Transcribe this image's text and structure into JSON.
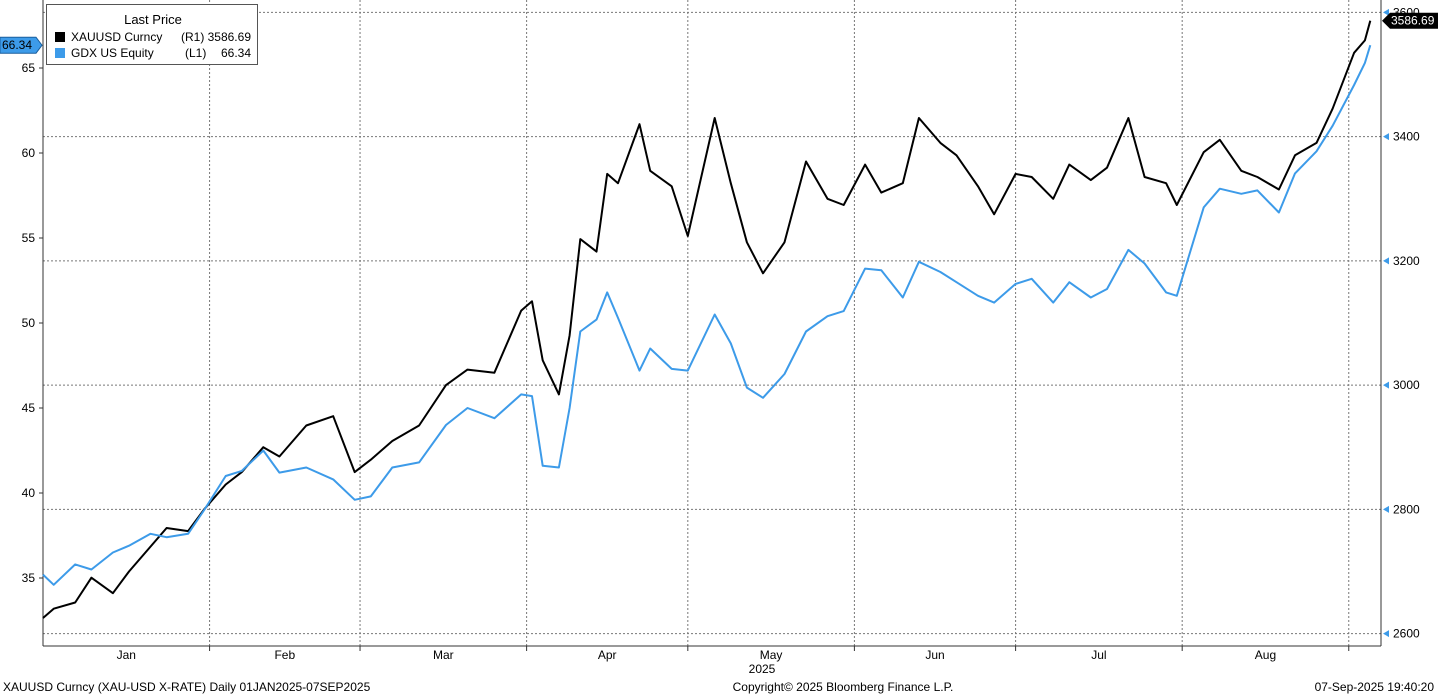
{
  "chart_data": {
    "type": "line",
    "legend": {
      "title": "Last Price",
      "placement": "top-left",
      "items": [
        {
          "name": "XAUUSD Curncy",
          "axis": "(R1)",
          "value": "3586.69",
          "color": "#000000"
        },
        {
          "name": "GDX US Equity",
          "axis": "(L1)",
          "value": "66.34",
          "color": "#3d9be9"
        }
      ]
    },
    "left_axis": {
      "ticks": [
        35,
        40,
        45,
        50,
        55,
        60,
        65
      ],
      "range": [
        31,
        69
      ],
      "last_label": "66.34"
    },
    "right_axis": {
      "ticks": [
        2600,
        2800,
        3000,
        3200,
        3400,
        3600
      ],
      "range": [
        2580,
        3620
      ],
      "last_label": "3586.69"
    },
    "x_axis": {
      "months": [
        "Jan",
        "Feb",
        "Mar",
        "Apr",
        "May",
        "Jun",
        "Jul",
        "Aug"
      ],
      "year_label": "2025",
      "start": "2025-01-01",
      "end": "2025-09-07"
    },
    "grid": true,
    "series": [
      {
        "name": "XAUUSD Curncy",
        "axis": "right",
        "color": "#000000",
        "points": [
          [
            "2025-01-01",
            2625
          ],
          [
            "2025-01-03",
            2640
          ],
          [
            "2025-01-07",
            2650
          ],
          [
            "2025-01-10",
            2690
          ],
          [
            "2025-01-14",
            2665
          ],
          [
            "2025-01-17",
            2700
          ],
          [
            "2025-01-21",
            2740
          ],
          [
            "2025-01-24",
            2770
          ],
          [
            "2025-01-28",
            2765
          ],
          [
            "2025-01-31",
            2800
          ],
          [
            "2025-02-04",
            2840
          ],
          [
            "2025-02-07",
            2860
          ],
          [
            "2025-02-11",
            2900
          ],
          [
            "2025-02-14",
            2885
          ],
          [
            "2025-02-19",
            2935
          ],
          [
            "2025-02-24",
            2950
          ],
          [
            "2025-02-28",
            2860
          ],
          [
            "2025-03-03",
            2880
          ],
          [
            "2025-03-07",
            2910
          ],
          [
            "2025-03-12",
            2935
          ],
          [
            "2025-03-17",
            3000
          ],
          [
            "2025-03-21",
            3025
          ],
          [
            "2025-03-26",
            3020
          ],
          [
            "2025-03-31",
            3120
          ],
          [
            "2025-04-02",
            3135
          ],
          [
            "2025-04-04",
            3040
          ],
          [
            "2025-04-07",
            2985
          ],
          [
            "2025-04-09",
            3080
          ],
          [
            "2025-04-11",
            3235
          ],
          [
            "2025-04-14",
            3215
          ],
          [
            "2025-04-16",
            3340
          ],
          [
            "2025-04-18",
            3325
          ],
          [
            "2025-04-22",
            3420
          ],
          [
            "2025-04-24",
            3345
          ],
          [
            "2025-04-28",
            3320
          ],
          [
            "2025-05-01",
            3240
          ],
          [
            "2025-05-06",
            3430
          ],
          [
            "2025-05-09",
            3325
          ],
          [
            "2025-05-12",
            3230
          ],
          [
            "2025-05-15",
            3180
          ],
          [
            "2025-05-19",
            3230
          ],
          [
            "2025-05-23",
            3360
          ],
          [
            "2025-05-27",
            3300
          ],
          [
            "2025-05-30",
            3290
          ],
          [
            "2025-06-03",
            3355
          ],
          [
            "2025-06-06",
            3310
          ],
          [
            "2025-06-10",
            3325
          ],
          [
            "2025-06-13",
            3430
          ],
          [
            "2025-06-17",
            3390
          ],
          [
            "2025-06-20",
            3370
          ],
          [
            "2025-06-24",
            3320
          ],
          [
            "2025-06-27",
            3275
          ],
          [
            "2025-07-01",
            3340
          ],
          [
            "2025-07-04",
            3335
          ],
          [
            "2025-07-08",
            3300
          ],
          [
            "2025-07-11",
            3355
          ],
          [
            "2025-07-15",
            3330
          ],
          [
            "2025-07-18",
            3350
          ],
          [
            "2025-07-22",
            3430
          ],
          [
            "2025-07-25",
            3335
          ],
          [
            "2025-07-29",
            3325
          ],
          [
            "2025-07-31",
            3290
          ],
          [
            "2025-08-05",
            3375
          ],
          [
            "2025-08-08",
            3395
          ],
          [
            "2025-08-12",
            3345
          ],
          [
            "2025-08-15",
            3335
          ],
          [
            "2025-08-19",
            3315
          ],
          [
            "2025-08-22",
            3370
          ],
          [
            "2025-08-26",
            3390
          ],
          [
            "2025-08-29",
            3445
          ],
          [
            "2025-09-02",
            3535
          ],
          [
            "2025-09-04",
            3555
          ],
          [
            "2025-09-05",
            3586.69
          ]
        ]
      },
      {
        "name": "GDX US Equity",
        "axis": "left",
        "color": "#3d9be9",
        "points": [
          [
            "2025-01-01",
            35.2
          ],
          [
            "2025-01-03",
            34.6
          ],
          [
            "2025-01-07",
            35.8
          ],
          [
            "2025-01-10",
            35.5
          ],
          [
            "2025-01-14",
            36.5
          ],
          [
            "2025-01-17",
            36.9
          ],
          [
            "2025-01-21",
            37.6
          ],
          [
            "2025-01-24",
            37.4
          ],
          [
            "2025-01-28",
            37.6
          ],
          [
            "2025-01-31",
            39.0
          ],
          [
            "2025-02-04",
            41.0
          ],
          [
            "2025-02-07",
            41.3
          ],
          [
            "2025-02-11",
            42.5
          ],
          [
            "2025-02-14",
            41.2
          ],
          [
            "2025-02-19",
            41.5
          ],
          [
            "2025-02-24",
            40.8
          ],
          [
            "2025-02-28",
            39.6
          ],
          [
            "2025-03-03",
            39.8
          ],
          [
            "2025-03-07",
            41.5
          ],
          [
            "2025-03-12",
            41.8
          ],
          [
            "2025-03-17",
            44.0
          ],
          [
            "2025-03-21",
            45.0
          ],
          [
            "2025-03-26",
            44.4
          ],
          [
            "2025-03-31",
            45.8
          ],
          [
            "2025-04-02",
            45.7
          ],
          [
            "2025-04-04",
            41.6
          ],
          [
            "2025-04-07",
            41.5
          ],
          [
            "2025-04-09",
            45.0
          ],
          [
            "2025-04-11",
            49.5
          ],
          [
            "2025-04-14",
            50.2
          ],
          [
            "2025-04-16",
            51.8
          ],
          [
            "2025-04-18",
            50.3
          ],
          [
            "2025-04-22",
            47.2
          ],
          [
            "2025-04-24",
            48.5
          ],
          [
            "2025-04-28",
            47.3
          ],
          [
            "2025-05-01",
            47.2
          ],
          [
            "2025-05-06",
            50.5
          ],
          [
            "2025-05-09",
            48.8
          ],
          [
            "2025-05-12",
            46.2
          ],
          [
            "2025-05-15",
            45.6
          ],
          [
            "2025-05-19",
            47.0
          ],
          [
            "2025-05-23",
            49.5
          ],
          [
            "2025-05-27",
            50.4
          ],
          [
            "2025-05-30",
            50.7
          ],
          [
            "2025-06-03",
            53.2
          ],
          [
            "2025-06-06",
            53.1
          ],
          [
            "2025-06-10",
            51.5
          ],
          [
            "2025-06-13",
            53.6
          ],
          [
            "2025-06-17",
            53.0
          ],
          [
            "2025-06-20",
            52.4
          ],
          [
            "2025-06-24",
            51.6
          ],
          [
            "2025-06-27",
            51.2
          ],
          [
            "2025-07-01",
            52.3
          ],
          [
            "2025-07-04",
            52.6
          ],
          [
            "2025-07-08",
            51.2
          ],
          [
            "2025-07-11",
            52.4
          ],
          [
            "2025-07-15",
            51.5
          ],
          [
            "2025-07-18",
            52.0
          ],
          [
            "2025-07-22",
            54.3
          ],
          [
            "2025-07-25",
            53.5
          ],
          [
            "2025-07-29",
            51.8
          ],
          [
            "2025-07-31",
            51.6
          ],
          [
            "2025-08-05",
            56.8
          ],
          [
            "2025-08-08",
            57.9
          ],
          [
            "2025-08-12",
            57.6
          ],
          [
            "2025-08-15",
            57.8
          ],
          [
            "2025-08-19",
            56.5
          ],
          [
            "2025-08-22",
            58.8
          ],
          [
            "2025-08-26",
            60.1
          ],
          [
            "2025-08-29",
            61.6
          ],
          [
            "2025-09-02",
            64.0
          ],
          [
            "2025-09-04",
            65.3
          ],
          [
            "2025-09-05",
            66.34
          ]
        ]
      }
    ]
  },
  "footer": {
    "ticker": "XAUUSD Curncy (XAU-USD X-RATE)  Daily 01JAN2025-07SEP2025",
    "copyright": "Copyright© 2025 Bloomberg Finance L.P.",
    "timestamp": "07-Sep-2025 19:40:20"
  }
}
